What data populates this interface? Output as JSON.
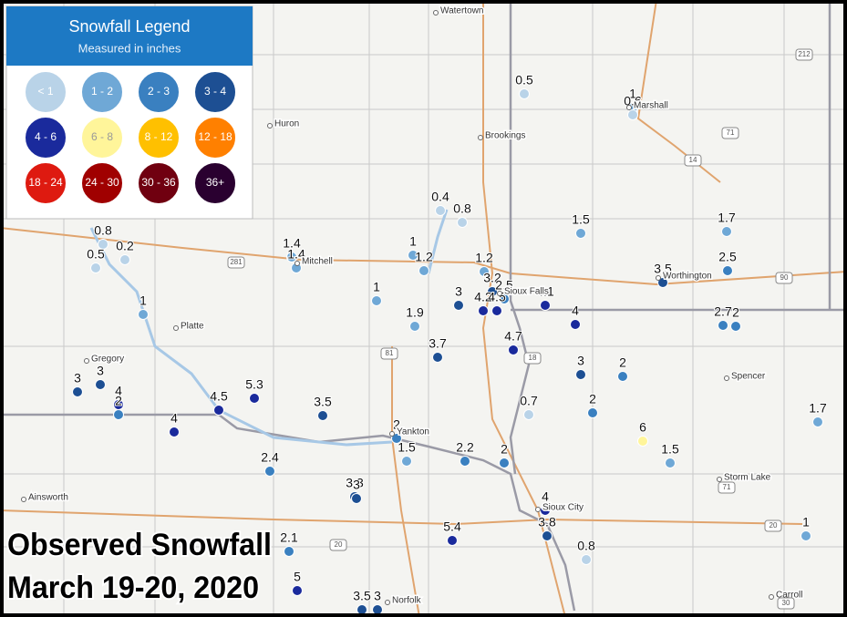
{
  "title": {
    "line1": "Observed Snowfall",
    "line2": "March 19-20, 2020"
  },
  "legend": {
    "title": "Snowfall Legend",
    "subtitle": "Measured in inches",
    "items": [
      {
        "label": "< 1",
        "color": "#b9d3e8"
      },
      {
        "label": "1 - 2",
        "color": "#6fa8d6"
      },
      {
        "label": "2 - 3",
        "color": "#3a80c0"
      },
      {
        "label": "3 - 4",
        "color": "#1d4f93"
      },
      {
        "label": "4 - 6",
        "color": "#1a2a9c"
      },
      {
        "label": "6 - 8",
        "color": "#fff59a"
      },
      {
        "label": "8 - 12",
        "color": "#ffc000"
      },
      {
        "label": "12 - 18",
        "color": "#ff8000"
      },
      {
        "label": "18 - 24",
        "color": "#de1a10"
      },
      {
        "label": "24 - 30",
        "color": "#a00000"
      },
      {
        "label": "30 - 36",
        "color": "#700010"
      },
      {
        "label": "36+",
        "color": "#2a0030"
      }
    ]
  },
  "places": [
    "Watertown",
    "Huron",
    "Brookings",
    "Marshall",
    "Mitchell",
    "Platte",
    "Sioux Falls",
    "Worthington",
    "Gregory",
    "Spencer",
    "Yankton",
    "Sioux City",
    "Storm Lake",
    "Ainsworth",
    "Norfolk",
    "Carroll"
  ],
  "highways": [
    "212",
    "71",
    "14",
    "281",
    "81",
    "18",
    "90",
    "71",
    "20",
    "20",
    "30"
  ],
  "points": [
    {
      "value": 0.5,
      "color": "#b9d3e8"
    },
    {
      "value": 1,
      "color": "#6fa8d6"
    },
    {
      "value": 0.6,
      "color": "#b9d3e8"
    },
    {
      "value": 0.4,
      "color": "#b9d3e8"
    },
    {
      "value": 0.8,
      "color": "#b9d3e8"
    },
    {
      "value": 1.5,
      "color": "#6fa8d6"
    },
    {
      "value": 1.7,
      "color": "#6fa8d6"
    },
    {
      "value": 0.8,
      "color": "#b9d3e8"
    },
    {
      "value": 0.5,
      "color": "#b9d3e8"
    },
    {
      "value": 0.2,
      "color": "#b9d3e8"
    },
    {
      "value": 1.4,
      "color": "#6fa8d6"
    },
    {
      "value": 1.4,
      "color": "#6fa8d6"
    },
    {
      "value": 1,
      "color": "#6fa8d6"
    },
    {
      "value": 1.2,
      "color": "#6fa8d6"
    },
    {
      "value": 1.2,
      "color": "#6fa8d6"
    },
    {
      "value": 2.5,
      "color": "#3a80c0"
    },
    {
      "value": 3.5,
      "color": "#1d4f93"
    },
    {
      "value": 3,
      "color": "#1d4f93"
    },
    {
      "value": 3.2,
      "color": "#1d4f93"
    },
    {
      "value": 2.5,
      "color": "#3a80c0"
    },
    {
      "value": 4.2,
      "color": "#1a2a9c"
    },
    {
      "value": 4.5,
      "color": "#1a2a9c"
    },
    {
      "value": 4.1,
      "color": "#1a2a9c"
    },
    {
      "value": 1,
      "color": "#6fa8d6"
    },
    {
      "value": 1,
      "color": "#6fa8d6"
    },
    {
      "value": 1.9,
      "color": "#6fa8d6"
    },
    {
      "value": 4,
      "color": "#1a2a9c"
    },
    {
      "value": 2.7,
      "color": "#3a80c0"
    },
    {
      "value": 2,
      "color": "#3a80c0"
    },
    {
      "value": 4.7,
      "color": "#1a2a9c"
    },
    {
      "value": 3.7,
      "color": "#1d4f93"
    },
    {
      "value": 3,
      "color": "#1d4f93"
    },
    {
      "value": 3,
      "color": "#1d4f93"
    },
    {
      "value": 4,
      "color": "#1a2a9c"
    },
    {
      "value": 2,
      "color": "#3a80c0"
    },
    {
      "value": 3,
      "color": "#1d4f93"
    },
    {
      "value": 2,
      "color": "#3a80c0"
    },
    {
      "value": 5.3,
      "color": "#1a2a9c"
    },
    {
      "value": 4.5,
      "color": "#1a2a9c"
    },
    {
      "value": 3.5,
      "color": "#1d4f93"
    },
    {
      "value": 4,
      "color": "#1a2a9c"
    },
    {
      "value": 0.7,
      "color": "#b9d3e8"
    },
    {
      "value": 2,
      "color": "#3a80c0"
    },
    {
      "value": 1.7,
      "color": "#6fa8d6"
    },
    {
      "value": 6,
      "color": "#fff59a"
    },
    {
      "value": 2,
      "color": "#3a80c0"
    },
    {
      "value": 1.5,
      "color": "#6fa8d6"
    },
    {
      "value": 2.2,
      "color": "#3a80c0"
    },
    {
      "value": 2,
      "color": "#3a80c0"
    },
    {
      "value": 1.5,
      "color": "#6fa8d6"
    },
    {
      "value": 2.4,
      "color": "#3a80c0"
    },
    {
      "value": 3.3,
      "color": "#1d4f93"
    },
    {
      "value": 3,
      "color": "#1d4f93"
    },
    {
      "value": 4,
      "color": "#1a2a9c"
    },
    {
      "value": 3.8,
      "color": "#1d4f93"
    },
    {
      "value": 5.4,
      "color": "#1a2a9c"
    },
    {
      "value": 0.8,
      "color": "#b9d3e8"
    },
    {
      "value": 1,
      "color": "#6fa8d6"
    },
    {
      "value": 2.1,
      "color": "#3a80c0"
    },
    {
      "value": 5,
      "color": "#1a2a9c"
    },
    {
      "value": 3.5,
      "color": "#1d4f93"
    },
    {
      "value": 3,
      "color": "#1d4f93"
    }
  ]
}
